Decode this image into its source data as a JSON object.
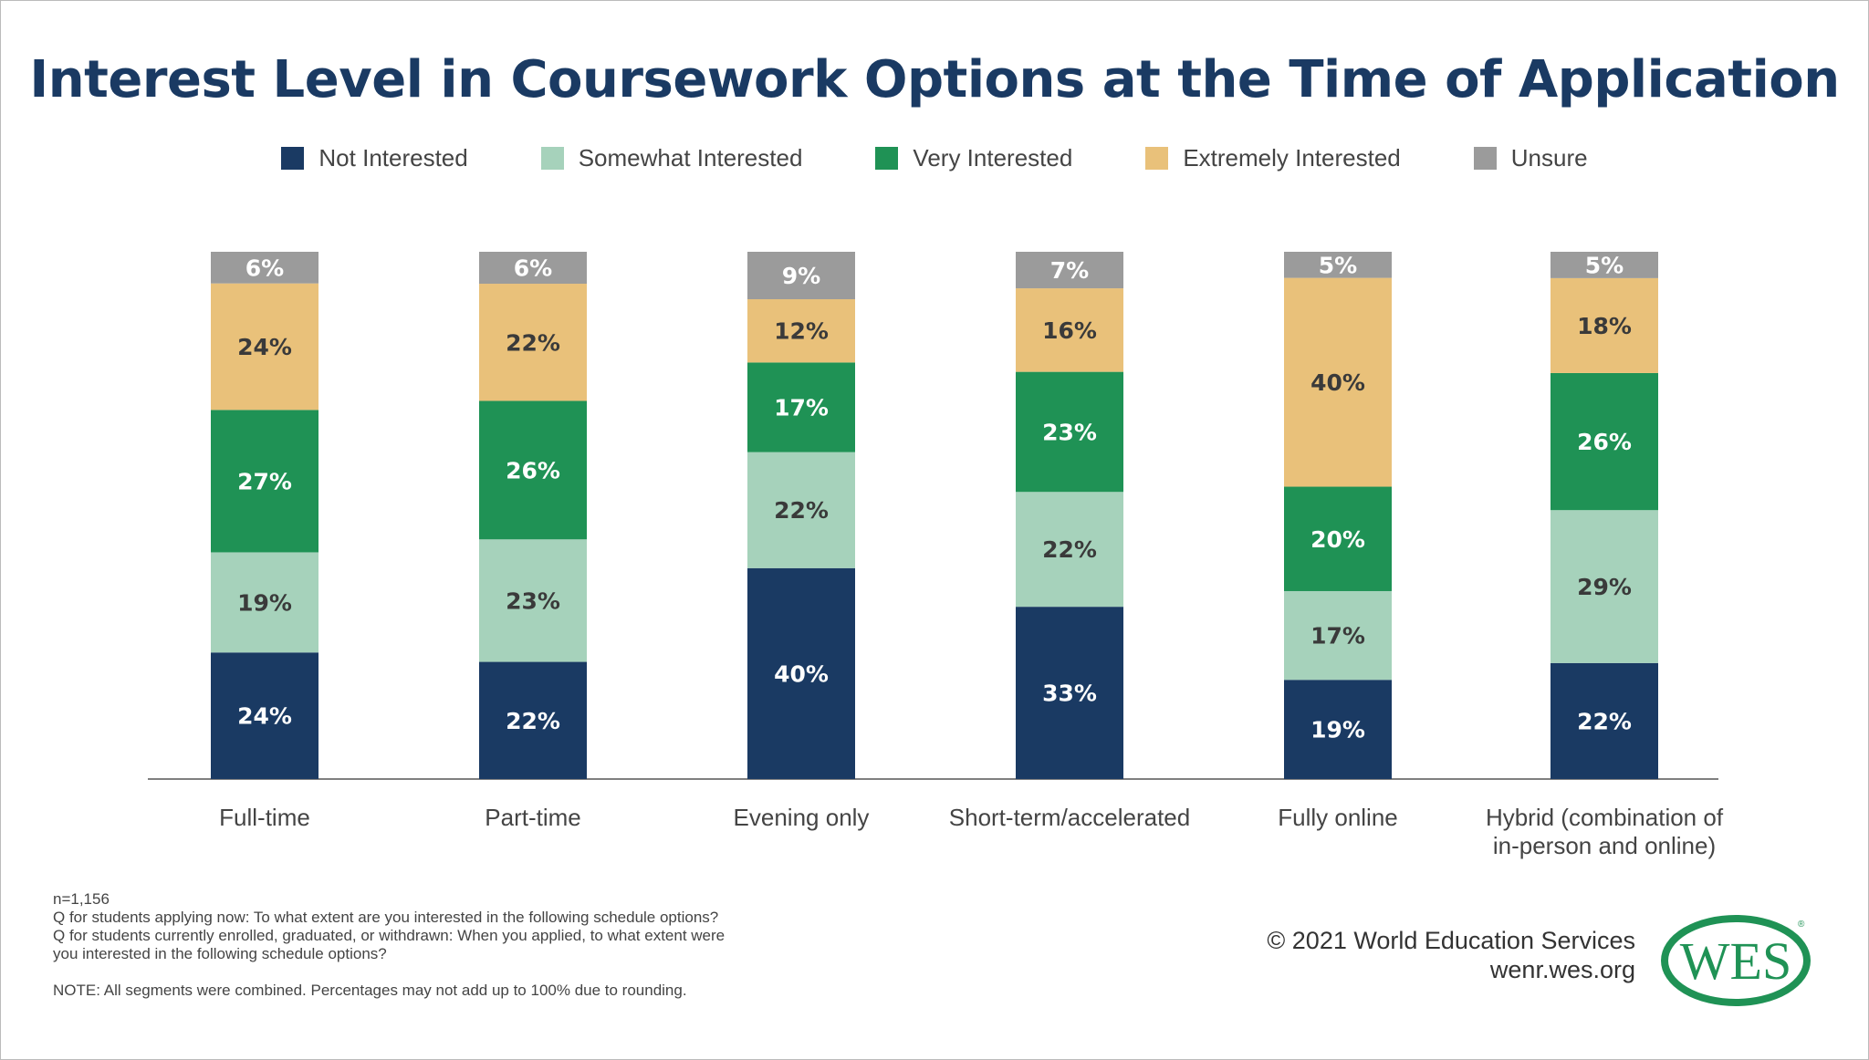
{
  "chart_data": {
    "type": "bar",
    "stacked": true,
    "title": "Interest Level in Coursework Options at the Time of Application",
    "categories": [
      "Full-time",
      "Part-time",
      "Evening only",
      "Short-term/accelerated",
      "Fully online",
      "Hybrid (combination of in-person and online)"
    ],
    "category_lines": [
      [
        "Full-time"
      ],
      [
        "Part-time"
      ],
      [
        "Evening only"
      ],
      [
        "Short-term/accelerated"
      ],
      [
        "Fully online"
      ],
      [
        "Hybrid (combination of",
        "in-person and online)"
      ]
    ],
    "series": [
      {
        "name": "Not Interested",
        "color": "#1a3a63",
        "label_color": "#ffffff",
        "values": [
          24,
          22,
          40,
          33,
          19,
          22
        ]
      },
      {
        "name": "Somewhat Interested",
        "color": "#a6d2bb",
        "label_color": "#3a3a3a",
        "values": [
          19,
          23,
          22,
          22,
          17,
          29
        ]
      },
      {
        "name": "Very Interested",
        "color": "#1f9255",
        "label_color": "#ffffff",
        "values": [
          27,
          26,
          17,
          23,
          20,
          26
        ]
      },
      {
        "name": "Extremely Interested",
        "color": "#e9c17a",
        "label_color": "#3a3a3a",
        "values": [
          24,
          22,
          12,
          16,
          40,
          18
        ]
      },
      {
        "name": "Unsure",
        "color": "#9b9b9b",
        "label_color": "#ffffff",
        "values": [
          6,
          6,
          9,
          7,
          5,
          5
        ]
      }
    ],
    "value_suffix": "%",
    "legend_position": "top",
    "grid": false
  },
  "footnotes": {
    "n": "n=1,156",
    "q1": "Q for students applying now: To what extent are you interested in the following schedule options?",
    "q2a": "Q for students currently enrolled, graduated, or withdrawn: When you applied, to what extent were",
    "q2b": "you interested in the following schedule options?",
    "note": "NOTE: All segments were combined. Percentages may not add up to 100% due to rounding."
  },
  "credits": {
    "copyright": "© 2021 World Education Services",
    "url": "wenr.wes.org"
  },
  "logo": {
    "text": "WES",
    "color": "#1f9255"
  }
}
